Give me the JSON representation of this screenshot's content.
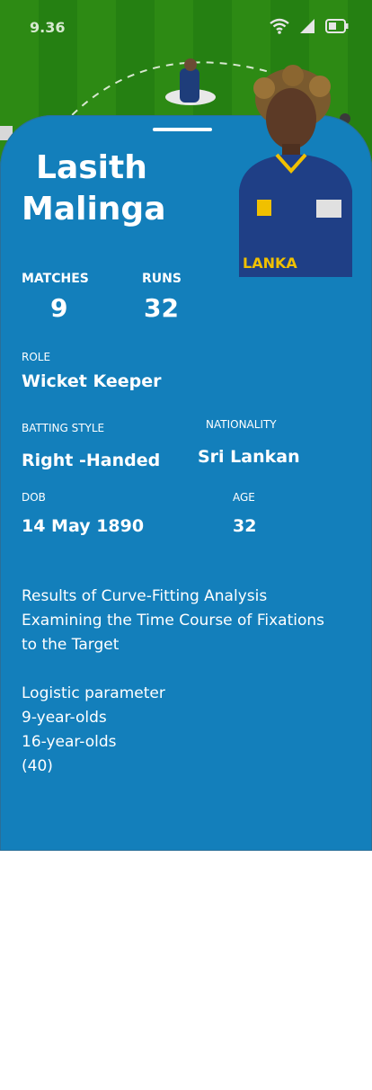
{
  "status_bar": {
    "time": "9.36",
    "icons": [
      "wifi-icon",
      "cellular-signal-icon",
      "battery-icon"
    ]
  },
  "player": {
    "first_name": "Lasith",
    "last_name": "Malinga"
  },
  "stats": {
    "matches_label": "MATCHES",
    "matches_value": "9",
    "runs_label": "RUNS",
    "runs_value": "32"
  },
  "details": {
    "role_label": "ROLE",
    "role_value": "Wicket Keeper",
    "batting_style_label": "BATTING STYLE",
    "batting_style_value": "Right -Handed",
    "nationality_label": "NATIONALITY",
    "nationality_value": "Sri Lankan",
    "dob_label": "DOB",
    "dob_value": "14 May 1890",
    "age_label": "AGE",
    "age_value": "32"
  },
  "notes": {
    "line1": "Results of Curve-Fitting Analysis",
    "line2": "Examining the Time Course of Fixations",
    "line3": "to the Target",
    "line4": "Logistic parameter",
    "line5": "9-year-olds",
    "line6": "16-year-olds",
    "line7": "(40)"
  },
  "colors": {
    "card": "#137fbb",
    "field_green": "#2d8a14",
    "text": "#ffffff"
  }
}
